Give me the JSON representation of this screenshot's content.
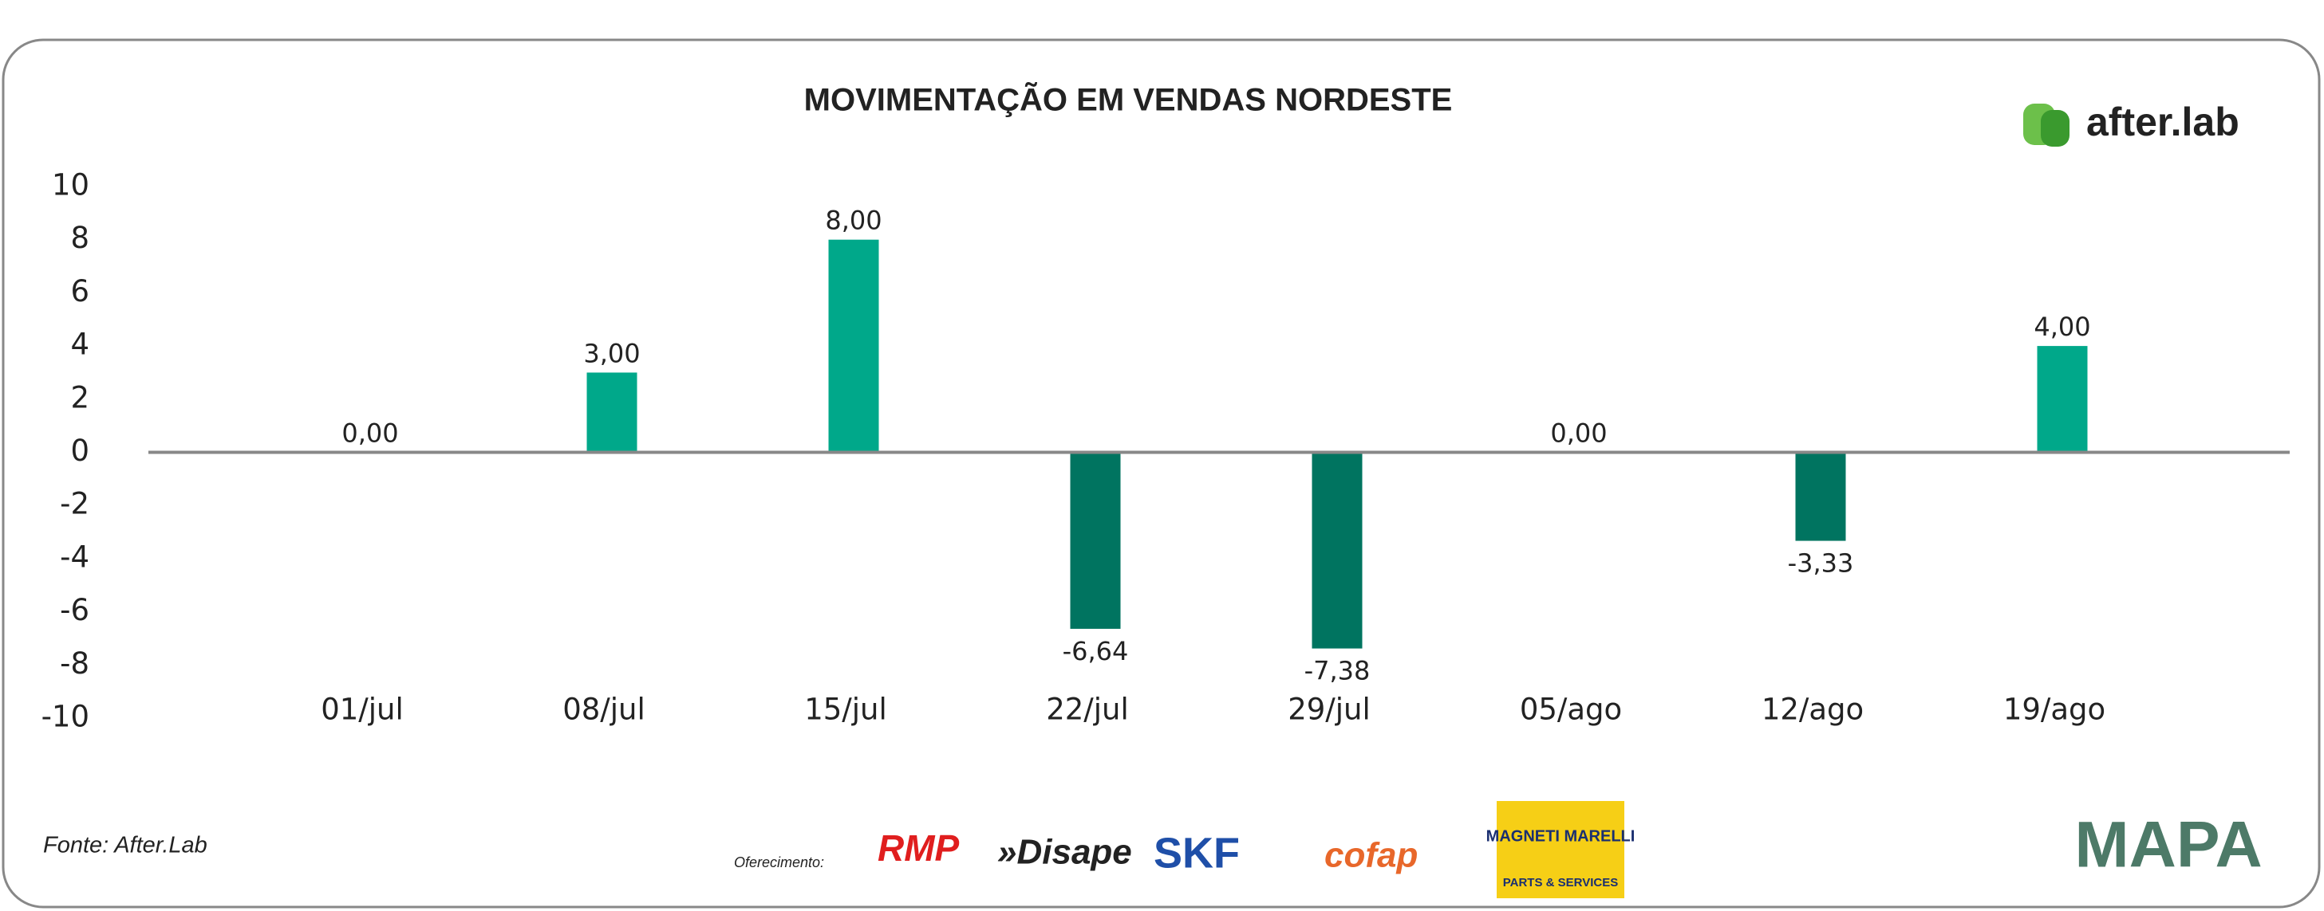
{
  "chart_data": {
    "type": "bar",
    "title": "MOVIMENTAÇÃO EM VENDAS NORDESTE",
    "categories": [
      "01/jul",
      "08/jul",
      "15/jul",
      "22/jul",
      "29/jul",
      "05/ago",
      "12/ago",
      "19/ago"
    ],
    "values": [
      0,
      3,
      8,
      -6.64,
      -7.38,
      0,
      -3.33,
      4
    ],
    "value_labels": [
      "0,00",
      "3,00",
      "8,00",
      "-6,64",
      "-7,38",
      "0,00",
      "-3,33",
      "4,00"
    ],
    "color": "#00a88a",
    "negative_color": "#007460",
    "ylim": [
      -10,
      10
    ],
    "yticks": [
      10,
      8,
      6,
      4,
      2,
      0,
      -2,
      -4,
      -6,
      -8,
      -10
    ],
    "grid": false
  },
  "source": "Fonte: After.Lab",
  "sponsors_label": "Oferecimento:",
  "brand": "after.lab",
  "sponsors": [
    "RMP",
    "»Disape",
    "SKF",
    "cofap",
    "MAGNETI MARELLI",
    "PARTS & SERVICES"
  ],
  "partner": "MAPA"
}
